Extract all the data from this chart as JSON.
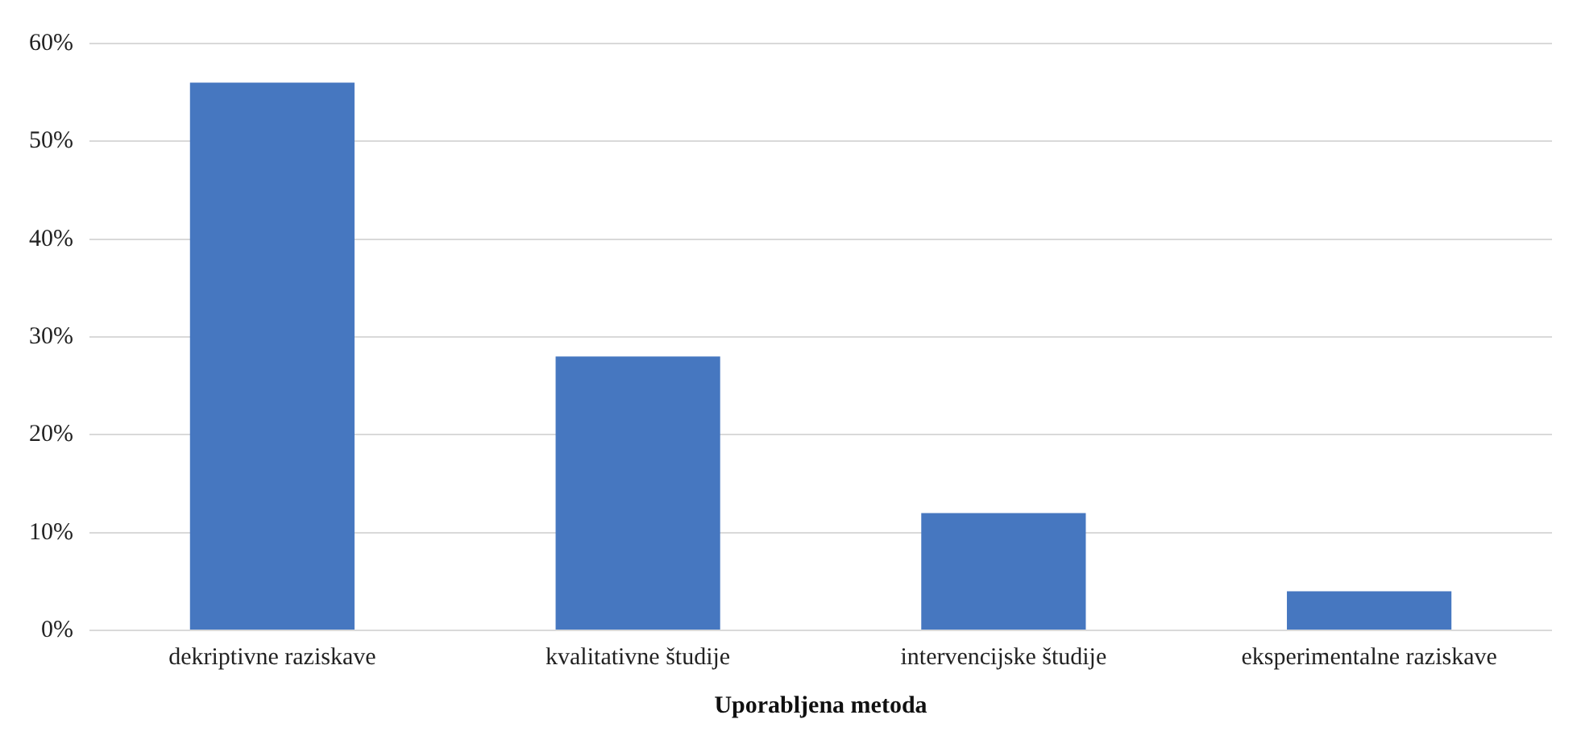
{
  "chart_data": {
    "type": "bar",
    "xlabel": "Uporabljena metoda",
    "categories": [
      "dekriptivne raziskave",
      "kvalitativne študije",
      "intervencijske študije",
      "eksperimentalne raziskave"
    ],
    "values": [
      56,
      28,
      12,
      4
    ],
    "color": "#4677c0",
    "ylim": [
      0,
      60
    ],
    "yticks": [
      {
        "value": 0,
        "label": "0%"
      },
      {
        "value": 10,
        "label": "10%"
      },
      {
        "value": 20,
        "label": "20%"
      },
      {
        "value": 30,
        "label": "30%"
      },
      {
        "value": 40,
        "label": "40%"
      },
      {
        "value": 50,
        "label": "50%"
      },
      {
        "value": 60,
        "label": "60%"
      }
    ],
    "grid": "y"
  }
}
